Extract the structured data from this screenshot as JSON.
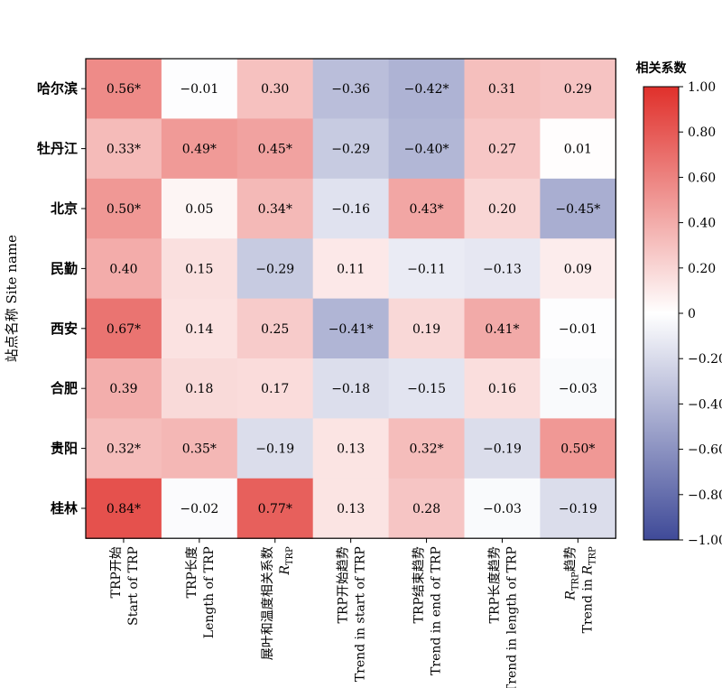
{
  "chart_data": {
    "type": "heatmap",
    "ylabel": "站点名称 Site name",
    "rows": [
      "哈尔滨",
      "牡丹江",
      "北京",
      "民勤",
      "西安",
      "合肥",
      "贵阳",
      "桂林"
    ],
    "columns": [
      {
        "line1": "TRP开始",
        "line2": "Start of TRP"
      },
      {
        "line1": "TRP长度",
        "line2": "Length of TRP"
      },
      {
        "line1": "展叶和温度相关系数",
        "line2": "R",
        "line2_sub": "TRP"
      },
      {
        "line1": "TRP开始趋势",
        "line2": "Trend in start of TRP"
      },
      {
        "line1": "TRP结束趋势",
        "line2": "Trend in end of TRP"
      },
      {
        "line1": "TRP长度趋势",
        "line2": "Trend in length of TRP"
      },
      {
        "line1": "R",
        "line1_sub": "TRP",
        "line1_suffix": "趋势",
        "line2": "Trend in R",
        "line2_sub": "TRP"
      }
    ],
    "values": [
      [
        0.56,
        -0.01,
        0.3,
        -0.36,
        -0.42,
        0.31,
        0.29
      ],
      [
        0.33,
        0.49,
        0.45,
        -0.29,
        -0.4,
        0.27,
        0.01
      ],
      [
        0.5,
        0.05,
        0.34,
        -0.16,
        0.43,
        0.2,
        -0.45
      ],
      [
        0.4,
        0.15,
        -0.29,
        0.11,
        -0.11,
        -0.13,
        0.09
      ],
      [
        0.67,
        0.14,
        0.25,
        -0.41,
        0.19,
        0.41,
        -0.01
      ],
      [
        0.39,
        0.18,
        0.17,
        -0.18,
        -0.15,
        0.16,
        -0.03
      ],
      [
        0.32,
        0.35,
        -0.19,
        0.13,
        0.32,
        -0.19,
        0.5
      ],
      [
        0.84,
        -0.02,
        0.77,
        0.13,
        0.28,
        -0.03,
        -0.19
      ]
    ],
    "labels": [
      [
        "0.56*",
        "−0.01",
        "0.30",
        "−0.36",
        "−0.42*",
        "0.31",
        "0.29"
      ],
      [
        "0.33*",
        "0.49*",
        "0.45*",
        "−0.29",
        "−0.40*",
        "0.27",
        "0.01"
      ],
      [
        "0.50*",
        "0.05",
        "0.34*",
        "−0.16",
        "0.43*",
        "0.20",
        "−0.45*"
      ],
      [
        "0.40",
        "0.15",
        "−0.29",
        "0.11",
        "−0.11",
        "−0.13",
        "0.09"
      ],
      [
        "0.67*",
        "0.14",
        "0.25",
        "−0.41*",
        "0.19",
        "0.41*",
        "−0.01"
      ],
      [
        "0.39",
        "0.18",
        "0.17",
        "−0.18",
        "−0.15",
        "0.16",
        "−0.03"
      ],
      [
        "0.32*",
        "0.35*",
        "−0.19",
        "0.13",
        "0.32*",
        "−0.19",
        "0.50*"
      ],
      [
        "0.84*",
        "−0.02",
        "0.77*",
        "0.13",
        "0.28",
        "−0.03",
        "−0.19"
      ]
    ],
    "colorbar": {
      "title": "相关系数",
      "range": [
        -1.0,
        1.0
      ],
      "ticks": [
        1.0,
        0.8,
        0.6,
        0.4,
        0.2,
        0,
        -0.2,
        -0.4,
        -0.6,
        -0.8,
        -1.0
      ],
      "tick_labels": [
        "1.00",
        "0.80",
        "0.60",
        "0.40",
        "0.20",
        "0",
        "−0.20",
        "−0.40",
        "−0.60",
        "−0.80",
        "−1.00"
      ],
      "colors": {
        "positive": "#e0302b",
        "neutral": "#ffffff",
        "negative": "#3f4a98"
      }
    }
  }
}
